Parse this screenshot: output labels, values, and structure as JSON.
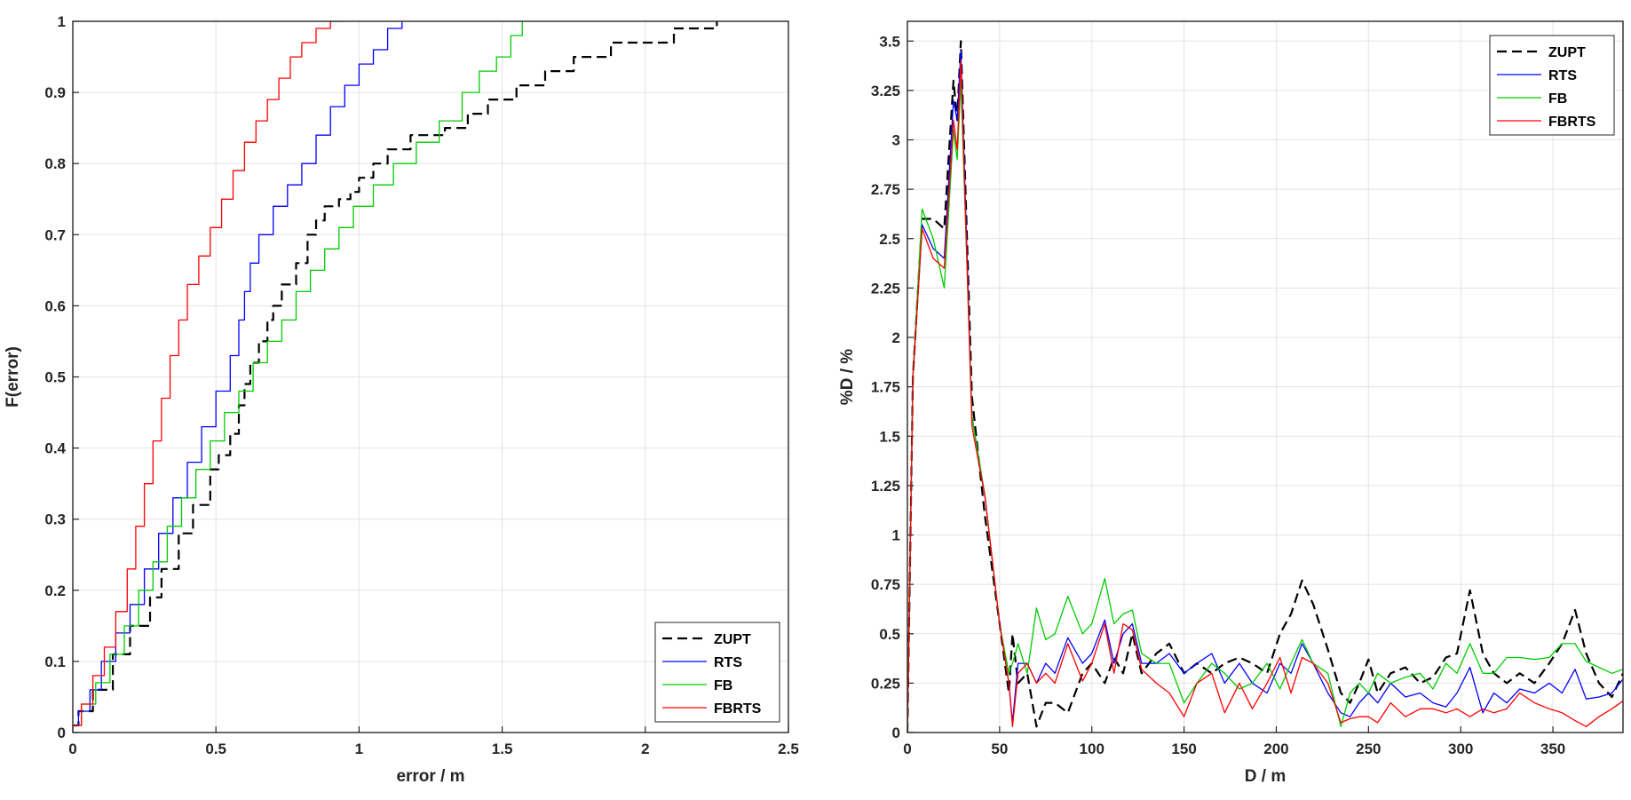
{
  "chart_data": [
    {
      "type": "line",
      "step": true,
      "xlabel": "error / m",
      "ylabel": "F(error)",
      "xlim": [
        0,
        2.5
      ],
      "ylim": [
        0,
        1
      ],
      "xticks": [
        "0",
        "0.5",
        "1",
        "1.5",
        "2",
        "2.5"
      ],
      "yticks": [
        "0",
        "0.1",
        "0.2",
        "0.3",
        "0.4",
        "0.5",
        "0.6",
        "0.7",
        "0.8",
        "0.9",
        "1"
      ],
      "grid": true,
      "legend": "bottom-right",
      "series": [
        {
          "name": "ZUPT",
          "color": "#000000",
          "dash": "dashed",
          "x": [
            0,
            0.02,
            0.07,
            0.14,
            0.2,
            0.27,
            0.31,
            0.37,
            0.42,
            0.48,
            0.51,
            0.55,
            0.58,
            0.6,
            0.62,
            0.65,
            0.68,
            0.7,
            0.73,
            0.78,
            0.82,
            0.85,
            0.88,
            0.93,
            0.97,
            1.0,
            1.05,
            1.1,
            1.18,
            1.3,
            1.38,
            1.45,
            1.55,
            1.65,
            1.75,
            1.88,
            2.1,
            2.25
          ],
          "y": [
            0.01,
            0.03,
            0.06,
            0.11,
            0.15,
            0.19,
            0.23,
            0.28,
            0.32,
            0.37,
            0.39,
            0.42,
            0.46,
            0.49,
            0.52,
            0.55,
            0.58,
            0.6,
            0.63,
            0.66,
            0.7,
            0.72,
            0.74,
            0.75,
            0.76,
            0.78,
            0.8,
            0.82,
            0.84,
            0.85,
            0.87,
            0.89,
            0.91,
            0.93,
            0.95,
            0.97,
            0.99,
            1.0
          ]
        },
        {
          "name": "RTS",
          "color": "#0000ff",
          "dash": "solid",
          "x": [
            0,
            0.02,
            0.06,
            0.1,
            0.15,
            0.2,
            0.25,
            0.3,
            0.35,
            0.4,
            0.45,
            0.5,
            0.55,
            0.58,
            0.6,
            0.62,
            0.65,
            0.7,
            0.75,
            0.8,
            0.85,
            0.9,
            0.95,
            1.0,
            1.05,
            1.1,
            1.15
          ],
          "y": [
            0.01,
            0.03,
            0.06,
            0.1,
            0.14,
            0.18,
            0.23,
            0.28,
            0.33,
            0.38,
            0.43,
            0.48,
            0.53,
            0.58,
            0.62,
            0.66,
            0.7,
            0.74,
            0.77,
            0.8,
            0.84,
            0.88,
            0.91,
            0.94,
            0.96,
            0.99,
            1.0
          ]
        },
        {
          "name": "FB",
          "color": "#00cc00",
          "dash": "solid",
          "x": [
            0,
            0.03,
            0.08,
            0.13,
            0.18,
            0.23,
            0.28,
            0.33,
            0.38,
            0.43,
            0.48,
            0.53,
            0.58,
            0.63,
            0.68,
            0.73,
            0.78,
            0.83,
            0.88,
            0.93,
            0.98,
            1.05,
            1.12,
            1.2,
            1.28,
            1.36,
            1.42,
            1.48,
            1.53,
            1.57
          ],
          "y": [
            0.01,
            0.04,
            0.07,
            0.11,
            0.15,
            0.2,
            0.24,
            0.29,
            0.33,
            0.37,
            0.41,
            0.45,
            0.48,
            0.52,
            0.55,
            0.58,
            0.62,
            0.65,
            0.68,
            0.71,
            0.74,
            0.77,
            0.8,
            0.83,
            0.86,
            0.9,
            0.93,
            0.95,
            0.98,
            1.0
          ]
        },
        {
          "name": "FBRTS",
          "color": "#ff0000",
          "dash": "solid",
          "x": [
            0,
            0.03,
            0.07,
            0.11,
            0.15,
            0.19,
            0.22,
            0.25,
            0.28,
            0.31,
            0.34,
            0.37,
            0.4,
            0.44,
            0.48,
            0.52,
            0.56,
            0.6,
            0.64,
            0.68,
            0.72,
            0.76,
            0.8,
            0.85,
            0.9,
            0.95
          ],
          "y": [
            0.01,
            0.04,
            0.08,
            0.12,
            0.17,
            0.23,
            0.29,
            0.35,
            0.41,
            0.47,
            0.53,
            0.58,
            0.63,
            0.67,
            0.71,
            0.75,
            0.79,
            0.83,
            0.86,
            0.89,
            0.92,
            0.95,
            0.97,
            0.99,
            1.0,
            1.0
          ]
        }
      ]
    },
    {
      "type": "line",
      "xlabel": "D / m",
      "ylabel": "%D / %",
      "xlim": [
        0,
        388
      ],
      "ylim": [
        0,
        3.6
      ],
      "xticks": [
        "0",
        "50",
        "100",
        "150",
        "200",
        "250",
        "300",
        "350"
      ],
      "yticks": [
        "0",
        "0.25",
        "0.5",
        "0.75",
        "1",
        "1.25",
        "1.5",
        "1.75",
        "2",
        "2.25",
        "2.5",
        "2.75",
        "3",
        "3.25",
        "3.5"
      ],
      "grid": true,
      "legend": "top-right",
      "series": [
        {
          "name": "ZUPT",
          "color": "#000000",
          "dash": "dashed",
          "x": [
            0,
            3,
            8,
            14,
            20,
            25,
            27,
            29,
            35,
            42,
            50,
            55,
            57,
            60,
            65,
            70,
            75,
            80,
            87,
            95,
            100,
            107,
            112,
            117,
            122,
            127,
            135,
            142,
            150,
            157,
            165,
            172,
            180,
            187,
            195,
            202,
            208,
            214,
            220,
            228,
            235,
            240,
            245,
            250,
            255,
            262,
            270,
            278,
            285,
            292,
            298,
            305,
            312,
            318,
            325,
            332,
            340,
            348,
            355,
            362,
            368,
            375,
            382,
            388
          ],
          "y": [
            0,
            1.8,
            2.6,
            2.6,
            2.55,
            3.3,
            3.1,
            3.5,
            1.7,
            1.1,
            0.55,
            0.2,
            0.5,
            0.25,
            0.3,
            0.03,
            0.15,
            0.15,
            0.1,
            0.3,
            0.35,
            0.25,
            0.38,
            0.3,
            0.5,
            0.3,
            0.4,
            0.45,
            0.3,
            0.35,
            0.3,
            0.35,
            0.38,
            0.35,
            0.3,
            0.5,
            0.6,
            0.77,
            0.65,
            0.42,
            0.2,
            0.15,
            0.25,
            0.37,
            0.2,
            0.3,
            0.33,
            0.25,
            0.28,
            0.38,
            0.4,
            0.72,
            0.4,
            0.3,
            0.25,
            0.3,
            0.25,
            0.35,
            0.45,
            0.62,
            0.4,
            0.25,
            0.18,
            0.3
          ]
        },
        {
          "name": "RTS",
          "color": "#0000ff",
          "dash": "solid",
          "x": [
            0,
            3,
            8,
            14,
            20,
            25,
            27,
            29,
            35,
            42,
            50,
            55,
            57,
            60,
            65,
            70,
            75,
            80,
            87,
            95,
            100,
            107,
            112,
            117,
            122,
            127,
            135,
            142,
            150,
            157,
            165,
            172,
            180,
            187,
            195,
            202,
            208,
            214,
            220,
            228,
            235,
            240,
            245,
            250,
            255,
            262,
            270,
            278,
            285,
            292,
            298,
            305,
            312,
            318,
            325,
            332,
            340,
            348,
            355,
            362,
            368,
            375,
            382,
            388
          ],
          "y": [
            0,
            1.8,
            2.57,
            2.45,
            2.4,
            3.2,
            3.1,
            3.45,
            1.6,
            1.2,
            0.55,
            0.25,
            0.05,
            0.35,
            0.35,
            0.25,
            0.35,
            0.3,
            0.48,
            0.35,
            0.4,
            0.57,
            0.35,
            0.5,
            0.55,
            0.35,
            0.35,
            0.4,
            0.3,
            0.35,
            0.4,
            0.25,
            0.35,
            0.25,
            0.2,
            0.35,
            0.3,
            0.45,
            0.35,
            0.2,
            0.1,
            0.08,
            0.15,
            0.2,
            0.15,
            0.25,
            0.18,
            0.2,
            0.15,
            0.13,
            0.2,
            0.33,
            0.1,
            0.2,
            0.15,
            0.22,
            0.2,
            0.25,
            0.2,
            0.32,
            0.17,
            0.18,
            0.2,
            0.27
          ]
        },
        {
          "name": "FB",
          "color": "#00cc00",
          "dash": "solid",
          "x": [
            0,
            3,
            8,
            14,
            20,
            25,
            27,
            29,
            35,
            42,
            50,
            55,
            57,
            60,
            65,
            70,
            75,
            80,
            87,
            95,
            100,
            107,
            112,
            117,
            122,
            127,
            135,
            142,
            150,
            157,
            165,
            172,
            180,
            187,
            195,
            202,
            208,
            214,
            220,
            228,
            235,
            240,
            245,
            250,
            255,
            262,
            270,
            278,
            285,
            292,
            298,
            305,
            312,
            318,
            325,
            332,
            340,
            348,
            355,
            362,
            368,
            375,
            382,
            388
          ],
          "y": [
            0,
            1.8,
            2.65,
            2.5,
            2.25,
            3.05,
            2.9,
            3.3,
            1.6,
            1.2,
            0.55,
            0.3,
            0.35,
            0.45,
            0.3,
            0.63,
            0.47,
            0.5,
            0.69,
            0.5,
            0.55,
            0.78,
            0.55,
            0.6,
            0.62,
            0.4,
            0.35,
            0.35,
            0.15,
            0.25,
            0.35,
            0.3,
            0.22,
            0.25,
            0.35,
            0.22,
            0.35,
            0.47,
            0.35,
            0.3,
            0.03,
            0.2,
            0.25,
            0.2,
            0.3,
            0.25,
            0.28,
            0.3,
            0.22,
            0.35,
            0.3,
            0.45,
            0.3,
            0.3,
            0.38,
            0.38,
            0.37,
            0.38,
            0.45,
            0.45,
            0.36,
            0.33,
            0.3,
            0.32
          ]
        },
        {
          "name": "FBRTS",
          "color": "#ff0000",
          "dash": "solid",
          "x": [
            0,
            3,
            8,
            14,
            20,
            25,
            27,
            29,
            35,
            42,
            50,
            55,
            57,
            60,
            65,
            70,
            75,
            80,
            87,
            95,
            100,
            107,
            112,
            117,
            122,
            127,
            135,
            142,
            150,
            157,
            165,
            172,
            180,
            187,
            195,
            202,
            208,
            214,
            220,
            228,
            235,
            240,
            245,
            250,
            255,
            262,
            270,
            278,
            285,
            292,
            298,
            305,
            312,
            318,
            325,
            332,
            340,
            348,
            355,
            362,
            368,
            375,
            382,
            388
          ],
          "y": [
            0,
            1.8,
            2.55,
            2.4,
            2.35,
            3.1,
            2.95,
            3.4,
            1.55,
            1.2,
            0.55,
            0.25,
            0.03,
            0.3,
            0.35,
            0.25,
            0.3,
            0.25,
            0.45,
            0.26,
            0.35,
            0.55,
            0.3,
            0.55,
            0.52,
            0.32,
            0.25,
            0.2,
            0.08,
            0.25,
            0.3,
            0.1,
            0.25,
            0.12,
            0.25,
            0.38,
            0.2,
            0.38,
            0.35,
            0.25,
            0.05,
            0.07,
            0.08,
            0.08,
            0.05,
            0.15,
            0.08,
            0.12,
            0.12,
            0.1,
            0.12,
            0.08,
            0.12,
            0.1,
            0.12,
            0.2,
            0.15,
            0.12,
            0.1,
            0.06,
            0.03,
            0.08,
            0.12,
            0.16
          ]
        }
      ]
    }
  ]
}
